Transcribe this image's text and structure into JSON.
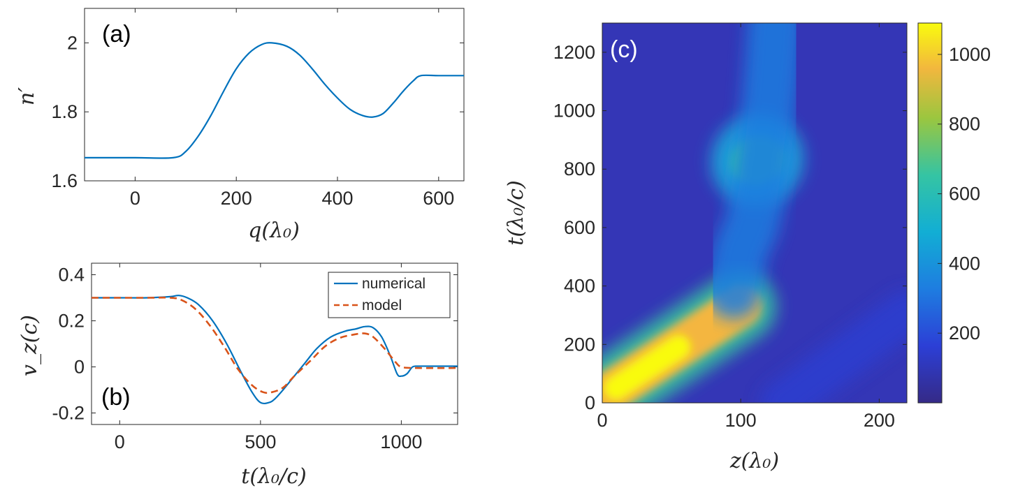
{
  "chart_data": [
    {
      "id": "a",
      "type": "line",
      "panel_label": "(a)",
      "xlabel": "q(λ₀)",
      "ylabel": "n′",
      "xlim": [
        -100,
        650
      ],
      "ylim": [
        1.6,
        2.1
      ],
      "xticks": [
        "0",
        "200",
        "400",
        "600"
      ],
      "xtick_values": [
        0,
        200,
        400,
        600
      ],
      "yticks": [
        "1.6",
        "1.8",
        "2"
      ],
      "ytick_values": [
        1.6,
        1.8,
        2.0
      ],
      "series": [
        {
          "name": "n′",
          "color": "#0072BD",
          "x": [
            -100,
            0,
            75,
            100,
            125,
            150,
            175,
            200,
            225,
            250,
            270,
            300,
            325,
            350,
            375,
            400,
            425,
            450,
            470,
            490,
            510,
            530,
            550,
            565,
            600,
            650
          ],
          "y": [
            1.667,
            1.667,
            1.667,
            1.685,
            1.73,
            1.79,
            1.86,
            1.925,
            1.97,
            1.995,
            2.0,
            1.99,
            1.965,
            1.925,
            1.88,
            1.84,
            1.807,
            1.789,
            1.785,
            1.795,
            1.825,
            1.86,
            1.89,
            1.905,
            1.905,
            1.905
          ]
        }
      ]
    },
    {
      "id": "b",
      "type": "line",
      "panel_label": "(b)",
      "xlabel": "t(λ₀/c)",
      "ylabel": "v_z(c)",
      "xlim": [
        -100,
        1200
      ],
      "ylim": [
        -0.25,
        0.45
      ],
      "xticks": [
        "0",
        "500",
        "1000"
      ],
      "xtick_values": [
        0,
        500,
        1000
      ],
      "yticks": [
        "-0.2",
        "0",
        "0.2",
        "0.4"
      ],
      "ytick_values": [
        -0.2,
        0,
        0.2,
        0.4
      ],
      "legend_position": "top-right",
      "series": [
        {
          "name": "numerical",
          "color": "#0072BD",
          "dash": "solid",
          "x": [
            -100,
            0,
            100,
            180,
            210,
            240,
            280,
            330,
            380,
            430,
            470,
            500,
            530,
            550,
            580,
            620,
            660,
            700,
            750,
            800,
            840,
            870,
            900,
            930,
            960,
            985,
            1000,
            1020,
            1040,
            1060,
            1100,
            1200
          ],
          "y": [
            0.3,
            0.3,
            0.3,
            0.305,
            0.31,
            0.3,
            0.27,
            0.2,
            0.1,
            -0.02,
            -0.11,
            -0.155,
            -0.155,
            -0.14,
            -0.1,
            -0.04,
            0.02,
            0.08,
            0.13,
            0.155,
            0.165,
            0.175,
            0.17,
            0.13,
            0.05,
            -0.03,
            -0.04,
            -0.03,
            0.0,
            0.003,
            0.003,
            0.003
          ]
        },
        {
          "name": "model",
          "color": "#D95319",
          "dash": "dashed",
          "x": [
            -100,
            0,
            100,
            180,
            220,
            270,
            320,
            370,
            420,
            470,
            510,
            540,
            580,
            620,
            680,
            730,
            780,
            830,
            870,
            900,
            940,
            980,
            1000,
            1050,
            1200
          ],
          "y": [
            0.3,
            0.3,
            0.3,
            0.3,
            0.29,
            0.25,
            0.18,
            0.09,
            -0.01,
            -0.08,
            -0.11,
            -0.11,
            -0.09,
            -0.04,
            0.03,
            0.09,
            0.125,
            0.14,
            0.145,
            0.13,
            0.08,
            0.02,
            0.0,
            -0.005,
            -0.005
          ]
        }
      ]
    },
    {
      "id": "c",
      "type": "heatmap",
      "panel_label": "(c)",
      "xlabel": "z(λ₀)",
      "ylabel": "t(λ₀/c)",
      "xlim": [
        0,
        220
      ],
      "ylim": [
        0,
        1300
      ],
      "xticks": [
        "0",
        "100",
        "200"
      ],
      "xtick_values": [
        0,
        100,
        200
      ],
      "yticks": [
        "0",
        "200",
        "400",
        "600",
        "800",
        "1000",
        "1200"
      ],
      "ytick_values": [
        0,
        200,
        400,
        600,
        800,
        1000,
        1200
      ],
      "colormap": "parula",
      "colorbar_range": [
        0,
        1090
      ],
      "colorbar_ticks": [
        "200",
        "400",
        "600",
        "800",
        "1000"
      ],
      "colorbar_tick_values": [
        200,
        400,
        600,
        800,
        1000
      ],
      "features": [
        {
          "kind": "streak",
          "z0": 0,
          "t0": 20,
          "z1": 100,
          "t1": 330,
          "peak": 1060,
          "width_z": 16
        },
        {
          "kind": "blob",
          "z": 112,
          "t": 830,
          "peak": 620,
          "width_z": 13,
          "width_t": 90
        },
        {
          "kind": "ridge",
          "path_z": [
            95,
            100,
            110,
            120,
            125
          ],
          "path_t": [
            380,
            520,
            650,
            1000,
            1300
          ],
          "peak": 300,
          "width_z": 18
        },
        {
          "kind": "faint_streak",
          "z0": 130,
          "t0": 0,
          "z1": 220,
          "t1": 310,
          "peak": 110,
          "width_z": 10
        }
      ]
    }
  ],
  "legend": {
    "numerical": "numerical",
    "model": "model"
  }
}
